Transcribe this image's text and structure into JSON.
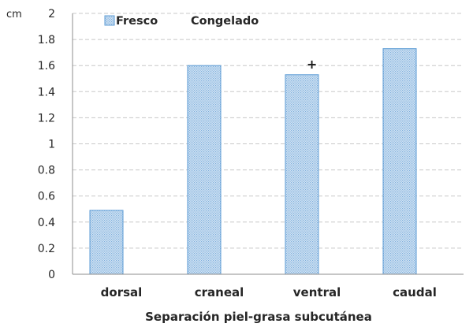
{
  "chart_data": {
    "type": "bar",
    "title": "",
    "xlabel": "Separación piel-grasa subcutánea",
    "ylabel": "cm",
    "ylim": [
      0,
      2
    ],
    "yticks": [
      "0",
      "0.2",
      "0.4",
      "0.6",
      "0.8",
      "1",
      "1.2",
      "1.4",
      "1.6",
      "1.8",
      "2"
    ],
    "categories": [
      "dorsal",
      "craneal",
      "ventral",
      "caudal"
    ],
    "series": [
      {
        "name": "Fresco",
        "values": [
          0.49,
          1.6,
          1.53,
          1.73
        ],
        "color": "#9DC3E6",
        "pattern": "dotted"
      },
      {
        "name": "Congelado",
        "values": [
          null,
          null,
          null,
          null
        ],
        "color": "#5B9BD5"
      }
    ],
    "annotations": [
      {
        "category": "ventral",
        "text": "+"
      }
    ],
    "grid": true,
    "legend_position": "top-left"
  }
}
